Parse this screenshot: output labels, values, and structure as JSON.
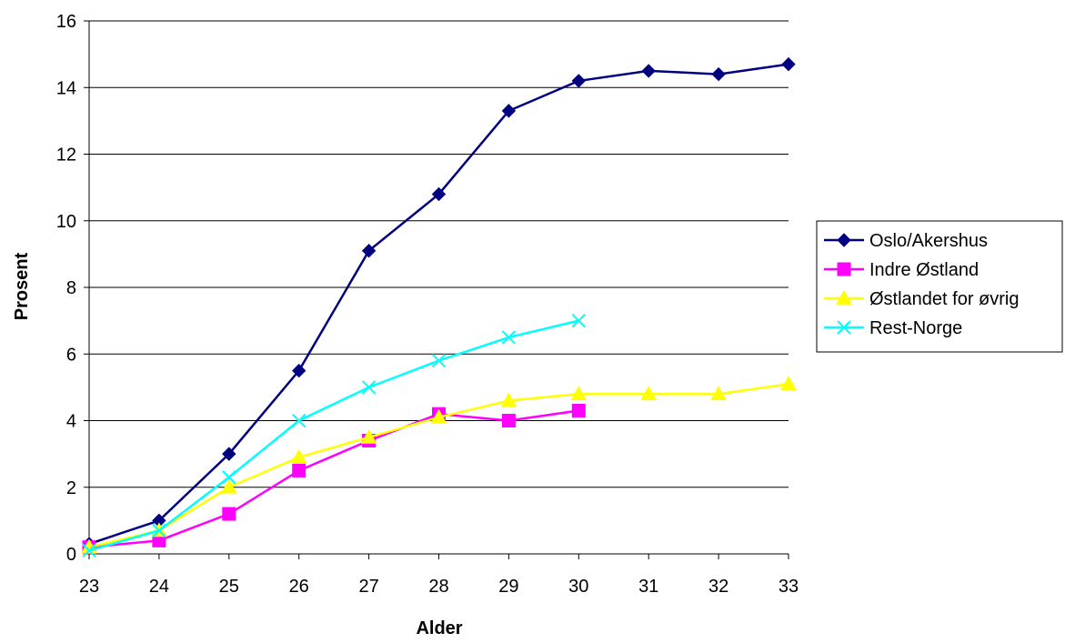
{
  "chart_data": {
    "type": "line",
    "title": "",
    "xlabel": "Alder",
    "ylabel": "Prosent",
    "xlim": [
      23,
      33
    ],
    "ylim": [
      0,
      16
    ],
    "x_ticks": [
      "23",
      "24",
      "25",
      "26",
      "27",
      "28",
      "29",
      "30",
      "31",
      "32",
      "33"
    ],
    "y_ticks": [
      "0",
      "2",
      "4",
      "6",
      "8",
      "10",
      "12",
      "14",
      "16"
    ],
    "grid": "horizontal",
    "legend_position": "right",
    "series": [
      {
        "name": "Oslo/Akershus",
        "color": "#000080",
        "marker": "diamond",
        "x": [
          23,
          24,
          25,
          26,
          27,
          28,
          29,
          30,
          31,
          32,
          33
        ],
        "y": [
          0.3,
          1.0,
          3.0,
          5.5,
          9.1,
          10.8,
          13.3,
          14.2,
          14.5,
          14.4,
          14.7
        ]
      },
      {
        "name": "Indre Østland",
        "color": "#FF00FF",
        "marker": "square",
        "x": [
          23,
          24,
          25,
          26,
          27,
          28,
          29,
          30
        ],
        "y": [
          0.2,
          0.4,
          1.2,
          2.5,
          3.4,
          4.2,
          4.0,
          4.3
        ]
      },
      {
        "name": "Østlandet for øvrig",
        "color": "#FFFF00",
        "marker": "triangle",
        "x": [
          23,
          24,
          25,
          26,
          27,
          28,
          29,
          30,
          31,
          32,
          33
        ],
        "y": [
          0.2,
          0.7,
          2.0,
          2.9,
          3.5,
          4.1,
          4.6,
          4.8,
          4.8,
          4.8,
          5.1
        ]
      },
      {
        "name": "Rest-Norge",
        "color": "#00FFFF",
        "marker": "x",
        "x": [
          23,
          24,
          25,
          26,
          27,
          28,
          29,
          30
        ],
        "y": [
          0.1,
          0.7,
          2.3,
          4.0,
          5.0,
          5.8,
          6.5,
          7.0
        ]
      }
    ]
  }
}
